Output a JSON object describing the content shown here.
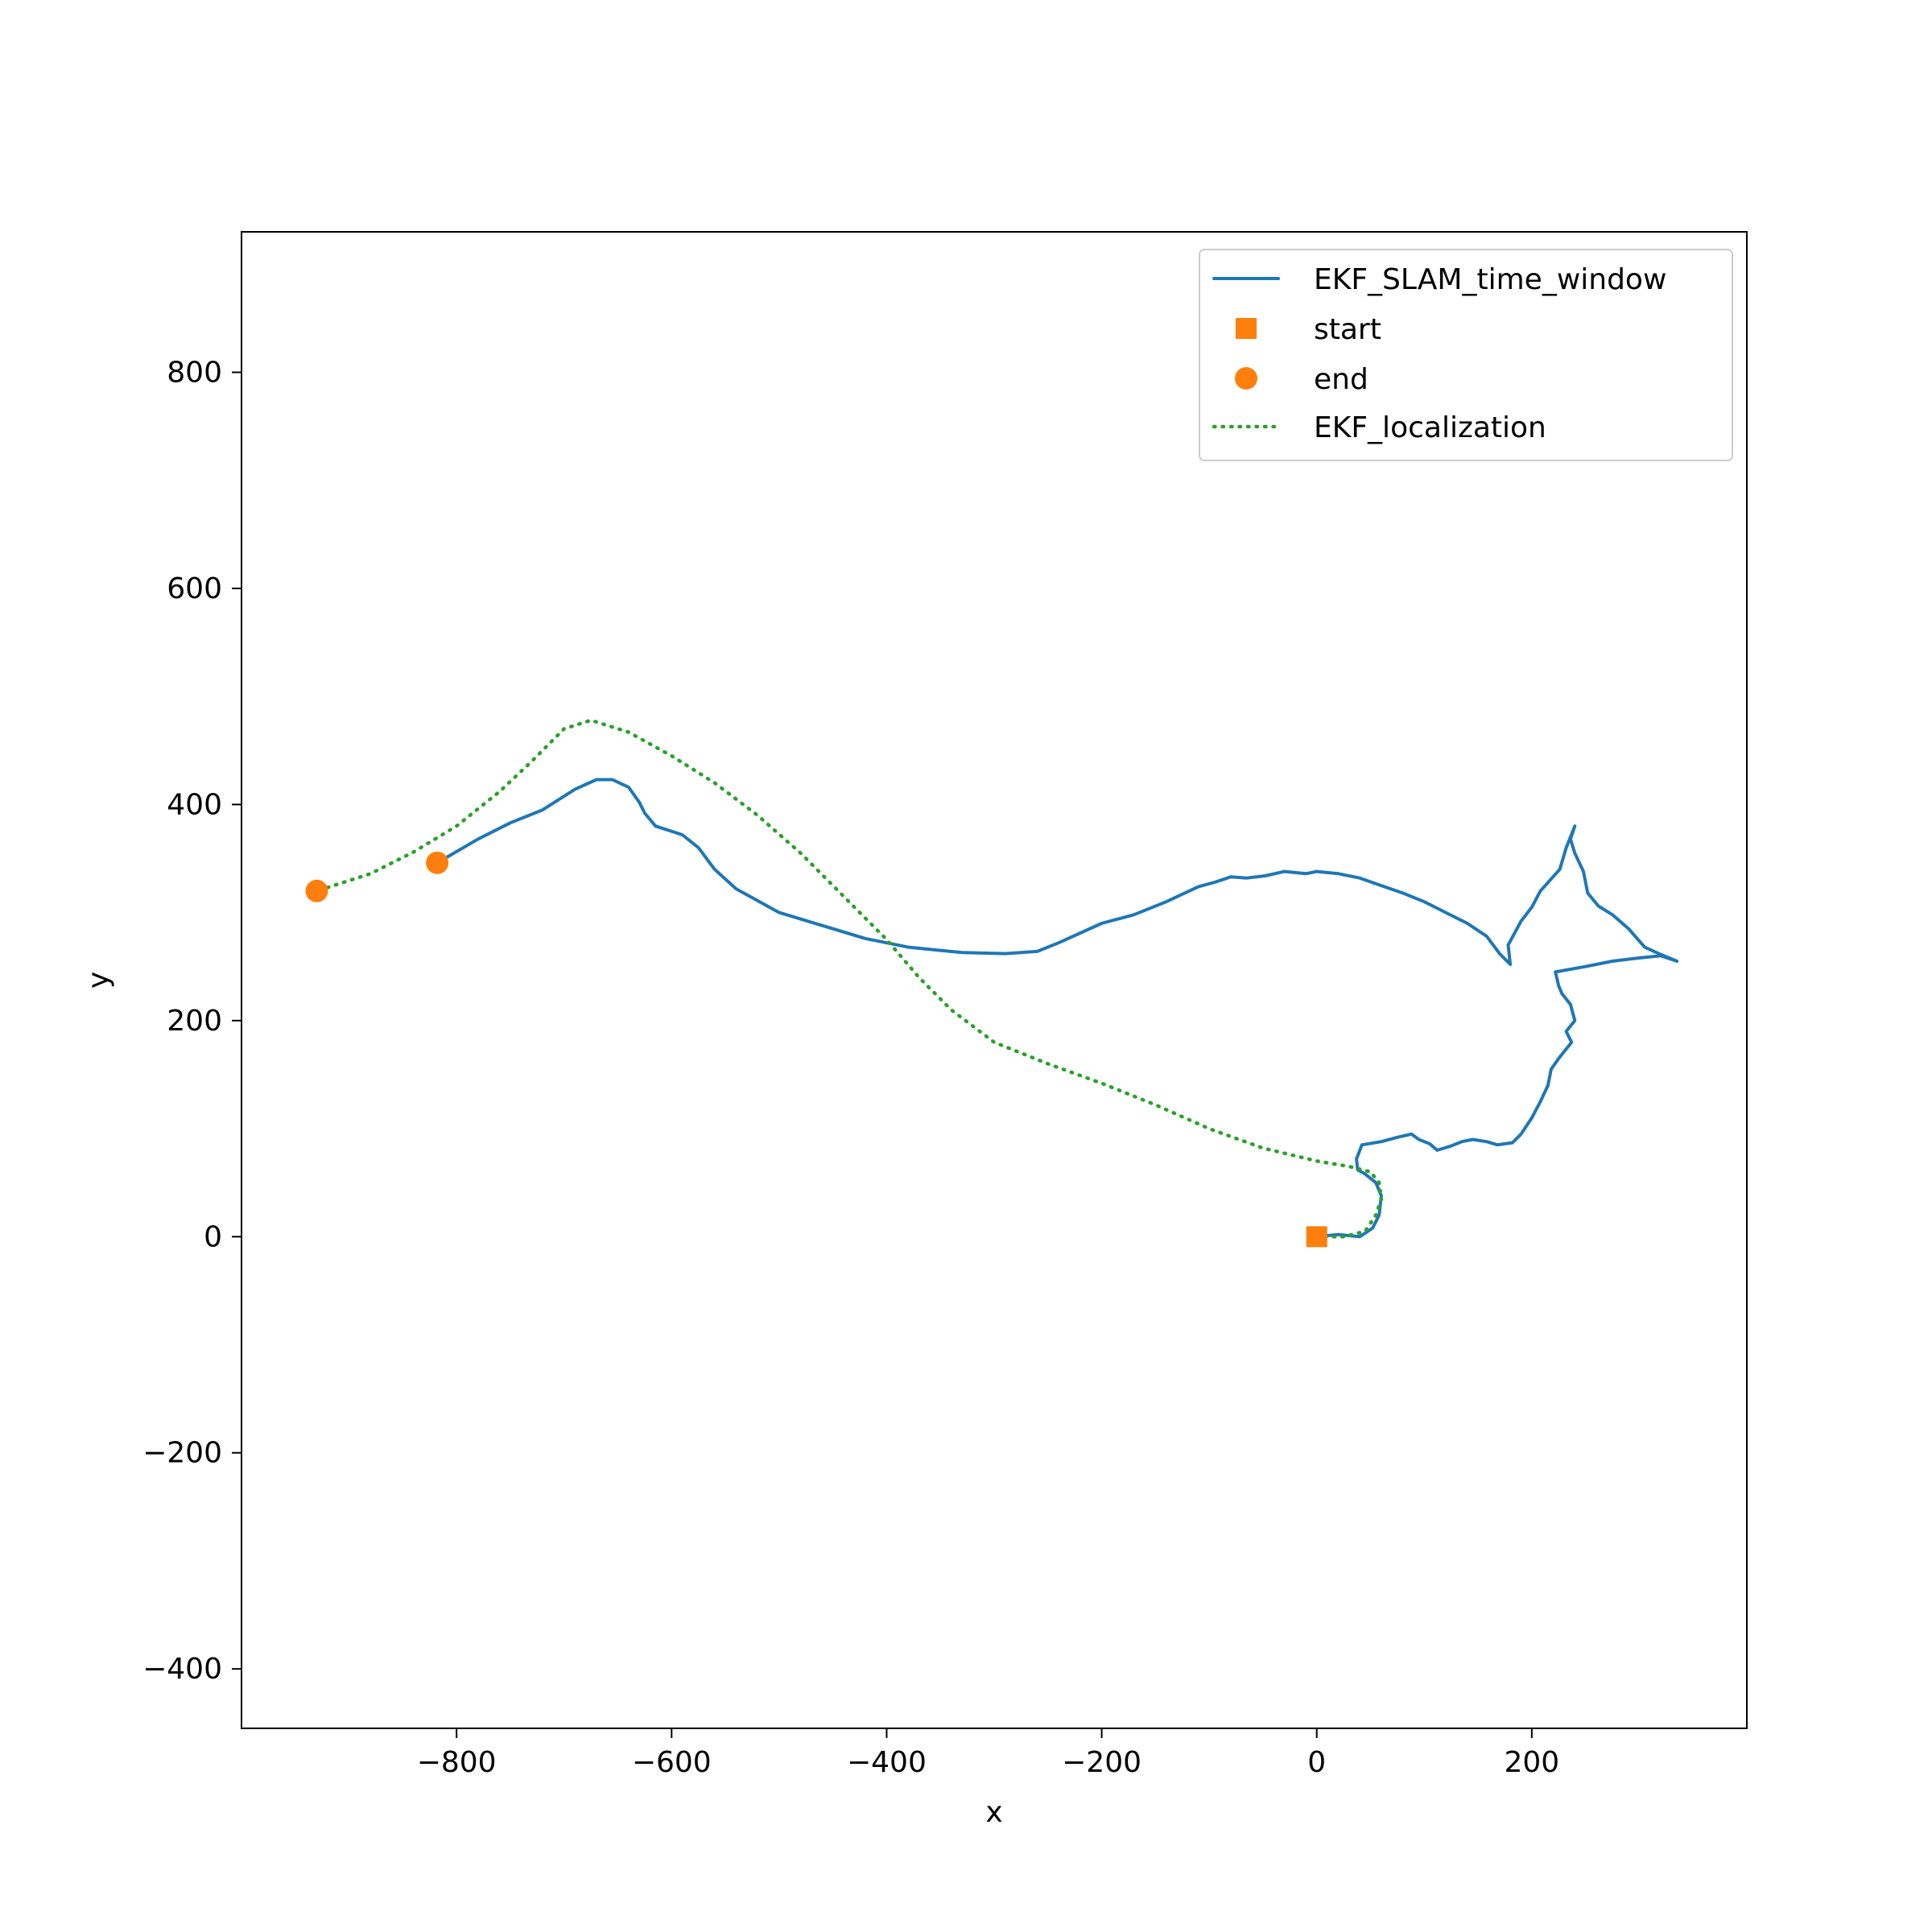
{
  "chart_data": {
    "type": "line",
    "title": "",
    "xlabel": "x",
    "ylabel": "y",
    "xlim": [
      -1000,
      400
    ],
    "ylim": [
      -455,
      930
    ],
    "xticks": [
      -800,
      -600,
      -400,
      -200,
      0,
      200
    ],
    "xtick_labels": [
      "−800",
      "−600",
      "−400",
      "−200",
      "0",
      "200"
    ],
    "yticks": [
      -400,
      -200,
      0,
      200,
      400,
      600,
      800
    ],
    "ytick_labels": [
      "−400",
      "−200",
      "0",
      "200",
      "400",
      "600",
      "800"
    ],
    "grid": false,
    "legend": "top-right",
    "series": [
      {
        "name": "EKF_SLAM_time_window",
        "kind": "line",
        "style": "solid",
        "color": "#1f77b4",
        "points": [
          [
            0,
            0
          ],
          [
            20,
            2
          ],
          [
            40,
            0
          ],
          [
            52,
            8
          ],
          [
            58,
            20
          ],
          [
            60,
            38
          ],
          [
            55,
            50
          ],
          [
            45,
            58
          ],
          [
            38,
            62
          ],
          [
            37,
            72
          ],
          [
            42,
            85
          ],
          [
            60,
            88
          ],
          [
            75,
            92
          ],
          [
            88,
            95
          ],
          [
            95,
            90
          ],
          [
            105,
            86
          ],
          [
            112,
            80
          ],
          [
            125,
            84
          ],
          [
            135,
            88
          ],
          [
            145,
            90
          ],
          [
            158,
            88
          ],
          [
            168,
            85
          ],
          [
            182,
            87
          ],
          [
            190,
            95
          ],
          [
            200,
            110
          ],
          [
            208,
            125
          ],
          [
            215,
            140
          ],
          [
            218,
            155
          ],
          [
            225,
            165
          ],
          [
            237,
            180
          ],
          [
            232,
            190
          ],
          [
            240,
            200
          ],
          [
            236,
            215
          ],
          [
            228,
            225
          ],
          [
            225,
            232
          ],
          [
            222,
            245
          ],
          [
            250,
            250
          ],
          [
            275,
            255
          ],
          [
            300,
            258
          ],
          [
            320,
            260
          ],
          [
            335,
            255
          ],
          [
            318,
            262
          ],
          [
            305,
            268
          ],
          [
            290,
            285
          ],
          [
            275,
            298
          ],
          [
            262,
            306
          ],
          [
            252,
            318
          ],
          [
            248,
            338
          ],
          [
            240,
            355
          ],
          [
            236,
            368
          ],
          [
            240,
            380
          ],
          [
            232,
            360
          ],
          [
            226,
            340
          ],
          [
            208,
            320
          ],
          [
            200,
            305
          ],
          [
            190,
            292
          ],
          [
            178,
            270
          ],
          [
            180,
            252
          ],
          [
            170,
            262
          ],
          [
            158,
            278
          ],
          [
            140,
            290
          ],
          [
            120,
            300
          ],
          [
            100,
            310
          ],
          [
            80,
            318
          ],
          [
            60,
            325
          ],
          [
            40,
            332
          ],
          [
            20,
            336
          ],
          [
            0,
            338
          ],
          [
            -10,
            336
          ],
          [
            -30,
            338
          ],
          [
            -48,
            334
          ],
          [
            -65,
            332
          ],
          [
            -80,
            333
          ],
          [
            -95,
            328
          ],
          [
            -110,
            324
          ],
          [
            -140,
            310
          ],
          [
            -170,
            298
          ],
          [
            -200,
            290
          ],
          [
            -240,
            272
          ],
          [
            -260,
            264
          ],
          [
            -290,
            262
          ],
          [
            -330,
            263
          ],
          [
            -380,
            268
          ],
          [
            -420,
            276
          ],
          [
            -460,
            288
          ],
          [
            -500,
            300
          ],
          [
            -540,
            322
          ],
          [
            -560,
            340
          ],
          [
            -575,
            360
          ],
          [
            -590,
            372
          ],
          [
            -615,
            380
          ],
          [
            -625,
            392
          ],
          [
            -630,
            402
          ],
          [
            -640,
            416
          ],
          [
            -655,
            423
          ],
          [
            -670,
            423
          ],
          [
            -690,
            414
          ],
          [
            -720,
            395
          ],
          [
            -750,
            383
          ],
          [
            -780,
            368
          ],
          [
            -818,
            346
          ]
        ]
      },
      {
        "name": "start",
        "kind": "marker",
        "marker": "square",
        "color": "#ff7f0e",
        "points": [
          [
            0,
            0
          ]
        ]
      },
      {
        "name": "end",
        "kind": "marker",
        "marker": "circle",
        "color": "#ff7f0e",
        "points": [
          [
            -818,
            346
          ],
          [
            -930,
            320
          ]
        ]
      },
      {
        "name": "EKF_localization",
        "kind": "line",
        "style": "dotted",
        "color": "#2ca02c",
        "points": [
          [
            0,
            0
          ],
          [
            25,
            0
          ],
          [
            45,
            5
          ],
          [
            55,
            20
          ],
          [
            60,
            35
          ],
          [
            58,
            50
          ],
          [
            50,
            60
          ],
          [
            30,
            65
          ],
          [
            0,
            70
          ],
          [
            -50,
            82
          ],
          [
            -100,
            100
          ],
          [
            -150,
            122
          ],
          [
            -200,
            142
          ],
          [
            -250,
            160
          ],
          [
            -300,
            180
          ],
          [
            -340,
            210
          ],
          [
            -370,
            240
          ],
          [
            -400,
            275
          ],
          [
            -440,
            315
          ],
          [
            -480,
            355
          ],
          [
            -520,
            390
          ],
          [
            -560,
            420
          ],
          [
            -600,
            445
          ],
          [
            -640,
            467
          ],
          [
            -675,
            478
          ],
          [
            -700,
            470
          ],
          [
            -730,
            440
          ],
          [
            -760,
            412
          ],
          [
            -800,
            380
          ],
          [
            -840,
            356
          ],
          [
            -880,
            336
          ],
          [
            -930,
            320
          ]
        ]
      }
    ]
  }
}
